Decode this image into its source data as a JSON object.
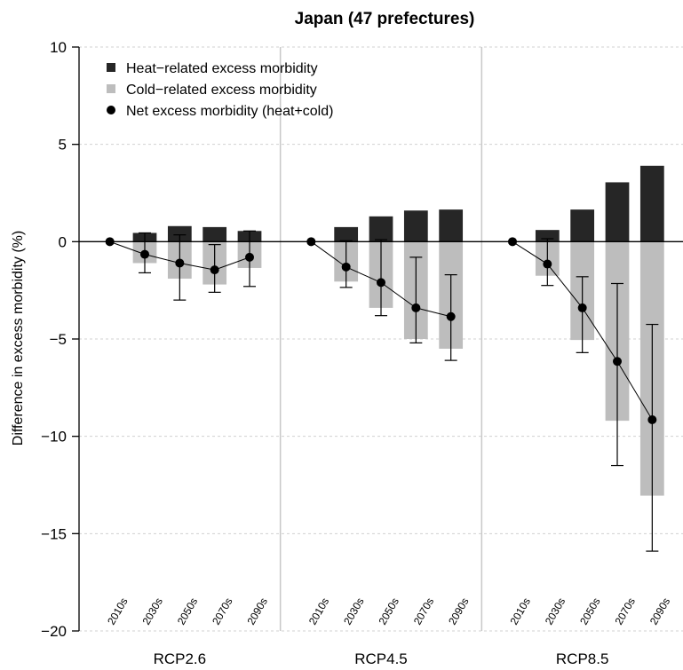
{
  "chart_data": {
    "type": "bar",
    "title": "Japan (47 prefectures)",
    "ylabel": "Difference in excess morbidity (%)",
    "xlabel": "",
    "ylim": [
      -20,
      10
    ],
    "yticks": [
      10,
      5,
      0,
      -5,
      -10,
      -15,
      -20
    ],
    "grid": true,
    "legend_position": "top-left",
    "legend": [
      {
        "label": "Heat−related excess morbidity",
        "marker": "square",
        "color": "#262626"
      },
      {
        "label": "Cold−related excess morbidity",
        "marker": "square",
        "color": "#bdbdbd"
      },
      {
        "label": "Net excess morbidity (heat+cold)",
        "marker": "circle",
        "color": "#000000"
      }
    ],
    "colors": {
      "heat": "#262626",
      "cold": "#bdbdbd",
      "net": "#000000",
      "grid": "#d0d0d0",
      "panel_divider": "#c8c8c8"
    },
    "categories": [
      "2010s",
      "2030s",
      "2050s",
      "2070s",
      "2090s"
    ],
    "panels": [
      {
        "name": "RCP2.6",
        "heat": [
          0,
          0.45,
          0.8,
          0.75,
          0.55
        ],
        "cold": [
          0,
          -1.1,
          -1.9,
          -2.2,
          -1.35
        ],
        "net": [
          0,
          -0.65,
          -1.1,
          -1.45,
          -0.8
        ],
        "net_low": [
          0,
          -1.6,
          -3.0,
          -2.6,
          -2.3
        ],
        "net_high": [
          0,
          0.45,
          0.35,
          -0.15,
          0.55
        ]
      },
      {
        "name": "RCP4.5",
        "heat": [
          0,
          0.75,
          1.3,
          1.6,
          1.65
        ],
        "cold": [
          0,
          -2.05,
          -3.4,
          -5.0,
          -5.5
        ],
        "net": [
          0,
          -1.3,
          -2.1,
          -3.4,
          -3.85
        ],
        "net_low": [
          0,
          -2.35,
          -3.8,
          -5.2,
          -6.1
        ],
        "net_high": [
          0,
          0.05,
          0.1,
          -0.8,
          -1.7
        ]
      },
      {
        "name": "RCP8.5",
        "heat": [
          0,
          0.6,
          1.65,
          3.05,
          3.9
        ],
        "cold": [
          0,
          -1.75,
          -5.05,
          -9.2,
          -13.05
        ],
        "net": [
          0,
          -1.15,
          -3.4,
          -6.15,
          -9.15
        ],
        "net_low": [
          0,
          -2.25,
          -5.7,
          -11.5,
          -15.9
        ],
        "net_high": [
          0,
          0.15,
          -1.8,
          -2.15,
          -4.25
        ]
      }
    ]
  }
}
